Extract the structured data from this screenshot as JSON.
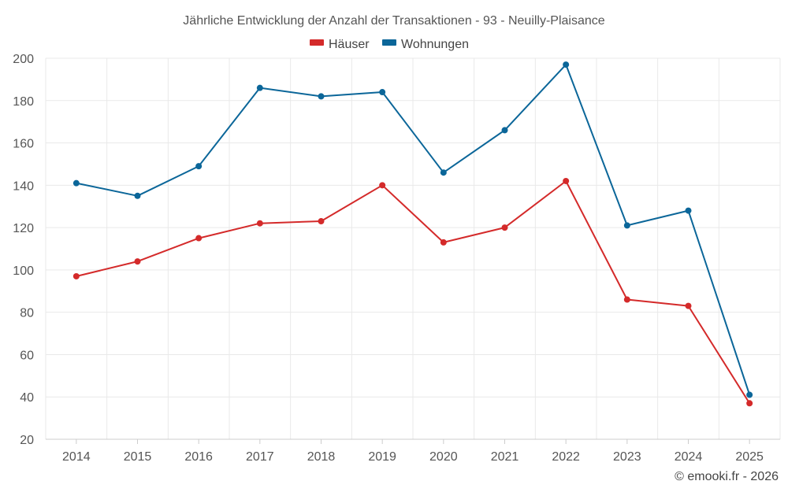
{
  "chart_data": {
    "type": "line",
    "title": "Jährliche Entwicklung der Anzahl der Transaktionen - 93 - Neuilly-Plaisance",
    "xlabel": "",
    "ylabel": "",
    "categories": [
      "2014",
      "2015",
      "2016",
      "2017",
      "2018",
      "2019",
      "2020",
      "2021",
      "2022",
      "2023",
      "2024",
      "2025"
    ],
    "ylim": [
      20,
      200
    ],
    "yticks": [
      20,
      40,
      60,
      80,
      100,
      120,
      140,
      160,
      180,
      200
    ],
    "grid": true,
    "legend_position": "top-center",
    "series": [
      {
        "name": "Häuser",
        "color": "#d42a2a",
        "values": [
          97,
          104,
          115,
          122,
          123,
          140,
          113,
          120,
          142,
          86,
          83,
          37
        ]
      },
      {
        "name": "Wohnungen",
        "color": "#0b6699",
        "values": [
          141,
          135,
          149,
          186,
          182,
          184,
          146,
          166,
          197,
          121,
          128,
          41
        ]
      }
    ]
  },
  "credit": "© emooki.fr - 2026"
}
